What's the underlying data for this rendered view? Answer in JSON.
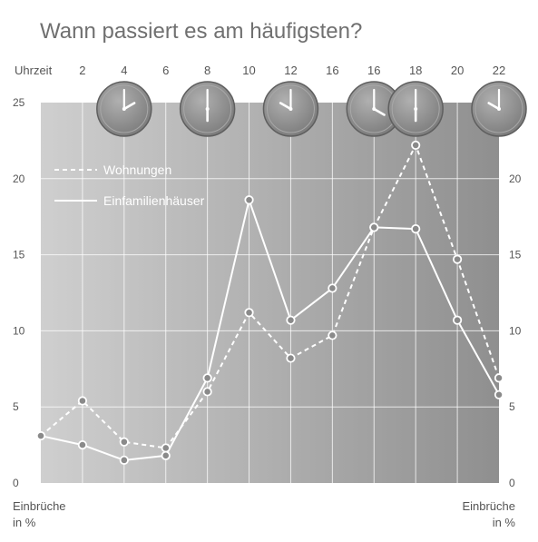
{
  "chart_data": {
    "type": "line",
    "title": "Wann passiert es am häufigsten?",
    "x_axis_label": "Uhrzeit",
    "x_tick_labels": [
      "2",
      "4",
      "6",
      "8",
      "10",
      "12",
      "16",
      "16",
      "18",
      "20",
      "22"
    ],
    "x": [
      0,
      2,
      4,
      6,
      8,
      10,
      12,
      14,
      16,
      18,
      20,
      22
    ],
    "y_label_left": [
      "Einbrüche",
      "in %"
    ],
    "y_label_right": [
      "Einbrüche",
      "in %"
    ],
    "y_ticks_left": [
      0,
      5,
      10,
      15,
      20,
      25
    ],
    "y_ticks_right": [
      0,
      5,
      10,
      15,
      20
    ],
    "ylim": [
      0,
      25
    ],
    "grid": true,
    "legend_position": "top-left",
    "series": [
      {
        "name": "Wohnungen",
        "style": "dashed",
        "values": [
          3.1,
          5.4,
          2.7,
          2.3,
          6.0,
          11.2,
          8.2,
          9.7,
          16.8,
          22.2,
          14.7,
          6.9
        ]
      },
      {
        "name": "Einfamilienhäuser",
        "style": "solid",
        "values": [
          3.1,
          2.5,
          1.5,
          1.8,
          6.9,
          18.6,
          10.7,
          12.8,
          16.8,
          16.7,
          10.7,
          5.8
        ]
      }
    ],
    "clocks": [
      {
        "label_index": 1,
        "hour": 2
      },
      {
        "label_index": 3,
        "hour": 6
      },
      {
        "label_index": 5,
        "hour": 10
      },
      {
        "label_index": 7,
        "hour": 16
      },
      {
        "label_index": 8,
        "hour": 18
      },
      {
        "label_index": 10,
        "hour": 22
      }
    ],
    "colors": {
      "plot_light": "#cfcfcf",
      "plot_dark": "#8f8f8f",
      "line": "#ffffff",
      "text": "#5a5a5a",
      "clock_face": "#8c8c8c"
    }
  }
}
